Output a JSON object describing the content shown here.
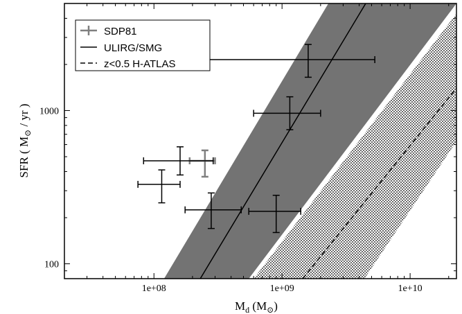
{
  "chart_data": {
    "type": "scatter",
    "title": "",
    "xlabel": {
      "main": "M",
      "sub": "d",
      "unit_open": " (M",
      "unit_close": ")"
    },
    "ylabel": {
      "main": "SFR ( M",
      "unit_close": " / yr )"
    },
    "xscale": "log",
    "yscale": "log",
    "xlim": [
      20000000.0,
      23000000000.0
    ],
    "ylim": [
      80,
      5000
    ],
    "x_ticks": [
      {
        "value": 100000000.0,
        "label": "1e+08"
      },
      {
        "value": 1000000000.0,
        "label": "1e+09"
      },
      {
        "value": 10000000000.0,
        "label": "1e+10"
      }
    ],
    "y_ticks": [
      {
        "value": 100,
        "label": "100"
      },
      {
        "value": 1000,
        "label": "1000"
      }
    ],
    "legend_position": "top-left",
    "legend": [
      {
        "label": "SDP81",
        "style": "errorbar",
        "color": "#7f7f7f"
      },
      {
        "label": "ULIRG/SMG",
        "style": "solid",
        "color": "#000000"
      },
      {
        "label": "z<0.5 H-ATLAS",
        "style": "dashed",
        "color": "#000000"
      }
    ],
    "colors": {
      "band": "#737373",
      "points": "#000000",
      "sdp81": "#7f7f7f"
    },
    "relations": [
      {
        "name": "ULIRG/SMG",
        "line_style": "solid",
        "fill": "solid-gray",
        "line": [
          [
            230000000.0,
            80
          ],
          [
            4500000000.0,
            5000
          ]
        ],
        "band_lower": [
          [
            550000000.0,
            80
          ],
          [
            23000000000.0,
            5000
          ]
        ],
        "band_upper": [
          [
            120000000.0,
            80
          ],
          [
            2300000000.0,
            5000
          ]
        ]
      },
      {
        "name": "z<0.5 H-ATLAS",
        "line_style": "dashed",
        "fill": "checkered",
        "line": [
          [
            1450000000.0,
            80
          ],
          [
            23000000000.0,
            1400
          ]
        ],
        "band_lower": [
          [
            4400000000.0,
            80
          ],
          [
            23000000000.0,
            630
          ]
        ],
        "band_upper": [
          [
            600000000.0,
            80
          ],
          [
            23000000000.0,
            4300
          ]
        ]
      }
    ],
    "series": [
      {
        "name": "SDP81",
        "color": "#7f7f7f",
        "points": [
          {
            "x": 250000000.0,
            "y": 470,
            "xerr": [
              190000000.0,
              300000000.0
            ],
            "yerr": [
              370,
              550
            ]
          }
        ]
      },
      {
        "color": "#000000",
        "points": [
          {
            "x": 160000000.0,
            "y": 470,
            "xerr": [
              83000000.0,
              290000000.0
            ],
            "yerr": [
              380,
              580
            ]
          },
          {
            "x": 115000000.0,
            "y": 330,
            "xerr": [
              75000000.0,
              160000000.0
            ],
            "yerr": [
              250,
              410
            ]
          },
          {
            "x": 280000000.0,
            "y": 225,
            "xerr": [
              175000000.0,
              480000000.0
            ],
            "yerr": [
              170,
              290
            ]
          },
          {
            "x": 900000000.0,
            "y": 220,
            "xerr": [
              550000000.0,
              1400000000.0
            ],
            "yerr": [
              160,
              280
            ]
          },
          {
            "x": 1150000000.0,
            "y": 960,
            "xerr": [
              600000000.0,
              2000000000.0
            ],
            "yerr": [
              750,
              1230
            ]
          },
          {
            "x": 1600000000.0,
            "y": 2150,
            "xerr": [
              220000000.0,
              5300000000.0
            ],
            "yerr": [
              1650,
              2700
            ]
          }
        ]
      }
    ]
  }
}
